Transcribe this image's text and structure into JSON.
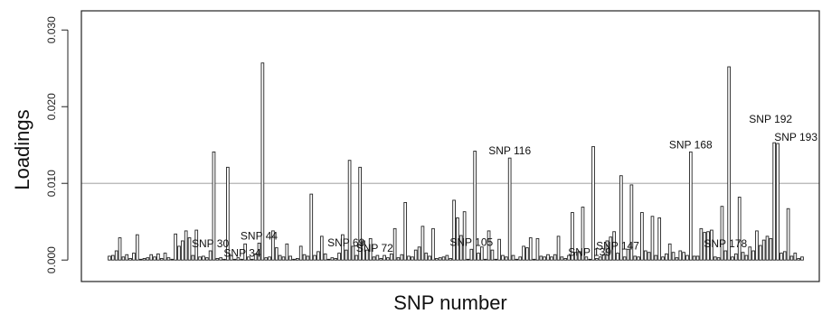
{
  "chart_data": {
    "type": "bar",
    "xlabel": "SNP number",
    "ylabel": "Loadings",
    "ylim": [
      -0.0028,
      0.0325
    ],
    "yticks": [
      0.0,
      0.01,
      0.02,
      0.03
    ],
    "ytick_labels": [
      "0.000",
      "0.010",
      "0.020",
      "0.030"
    ],
    "reference_line": 0.01,
    "bar_color": "#222222",
    "reference_color": "#b3b3b3",
    "n_snps": 200,
    "values": [
      0.0005,
      0.0006,
      0.0012,
      0.0029,
      0.0004,
      0.0007,
      0.0002,
      0.0009,
      0.0033,
      0.0001,
      0.0002,
      0.0003,
      0.0007,
      0.0004,
      0.0008,
      0.0002,
      0.0009,
      0.0003,
      0.0001,
      0.0034,
      0.0018,
      0.0025,
      0.0038,
      0.0029,
      0.0006,
      0.0039,
      0.0004,
      0.0005,
      0.0003,
      0.0012,
      0.0141,
      0.0002,
      0.0003,
      0.0001,
      0.0121,
      0.0006,
      0.0001,
      0.0003,
      0.0001,
      0.0021,
      0.0004,
      0.0001,
      0.0008,
      0.0022,
      0.0257,
      0.0003,
      0.0004,
      0.0038,
      0.0016,
      0.0006,
      0.0004,
      0.0021,
      0.0005,
      0.0001,
      0.0002,
      0.0018,
      0.0007,
      0.0005,
      0.0086,
      0.0006,
      0.0011,
      0.0031,
      0.0008,
      0.0001,
      0.0003,
      0.0002,
      0.0009,
      0.0033,
      0.0013,
      0.013,
      0.0018,
      0.0006,
      0.0121,
      0.0025,
      0.0013,
      0.0028,
      0.0004,
      0.0006,
      0.0002,
      0.0006,
      0.0003,
      0.0008,
      0.0041,
      0.0003,
      0.0007,
      0.0075,
      0.0005,
      0.0004,
      0.0013,
      0.0017,
      0.0044,
      0.0009,
      0.0005,
      0.0041,
      0.0002,
      0.0003,
      0.0004,
      0.0006,
      0.0002,
      0.0078,
      0.0055,
      0.0032,
      0.0063,
      0.0001,
      0.0014,
      0.0142,
      0.0009,
      0.0017,
      0.0001,
      0.0038,
      0.0013,
      0.0001,
      0.0027,
      0.0006,
      0.0004,
      0.0133,
      0.0006,
      0.0001,
      0.0004,
      0.0018,
      0.0016,
      0.0029,
      0.0001,
      0.0028,
      0.0005,
      0.0004,
      0.0007,
      0.0004,
      0.0007,
      0.0031,
      0.0004,
      0.0002,
      0.0006,
      0.0062,
      0.001,
      0.0011,
      0.0069,
      0.0004,
      0.0001,
      0.0148,
      0.0002,
      0.0004,
      0.0007,
      0.0025,
      0.003,
      0.0037,
      0.0009,
      0.011,
      0.0004,
      0.0014,
      0.0098,
      0.0005,
      0.0004,
      0.0062,
      0.0012,
      0.001,
      0.0057,
      0.0006,
      0.0055,
      0.0004,
      0.0008,
      0.0021,
      0.001,
      0.0003,
      0.0012,
      0.001,
      0.0006,
      0.0141,
      0.0005,
      0.0005,
      0.0041,
      0.0036,
      0.0037,
      0.0039,
      0.0004,
      0.0003,
      0.007,
      0.0012,
      0.0252,
      0.0004,
      0.0008,
      0.0082,
      0.001,
      0.0006,
      0.0017,
      0.0012,
      0.0038,
      0.0019,
      0.0026,
      0.0031,
      0.0028,
      0.0153,
      0.0152,
      0.0009,
      0.0011,
      0.0067,
      0.0005,
      0.0009,
      0.0002,
      0.0004
    ],
    "annotations": [
      {
        "snp": 30,
        "label": "SNP 30"
      },
      {
        "snp": 34,
        "label": "SNP 34"
      },
      {
        "snp": 44,
        "label": "SNP 44"
      },
      {
        "snp": 69,
        "label": "SNP 69"
      },
      {
        "snp": 72,
        "label": "SNP 72"
      },
      {
        "snp": 105,
        "label": "SNP 105"
      },
      {
        "snp": 116,
        "label": "SNP 116"
      },
      {
        "snp": 139,
        "label": "SNP 139"
      },
      {
        "snp": 147,
        "label": "SNP 147"
      },
      {
        "snp": 168,
        "label": "SNP 168"
      },
      {
        "snp": 178,
        "label": "SNP 178"
      },
      {
        "snp": 192,
        "label": "SNP 192"
      },
      {
        "snp": 193,
        "label": "SNP 193"
      }
    ]
  }
}
